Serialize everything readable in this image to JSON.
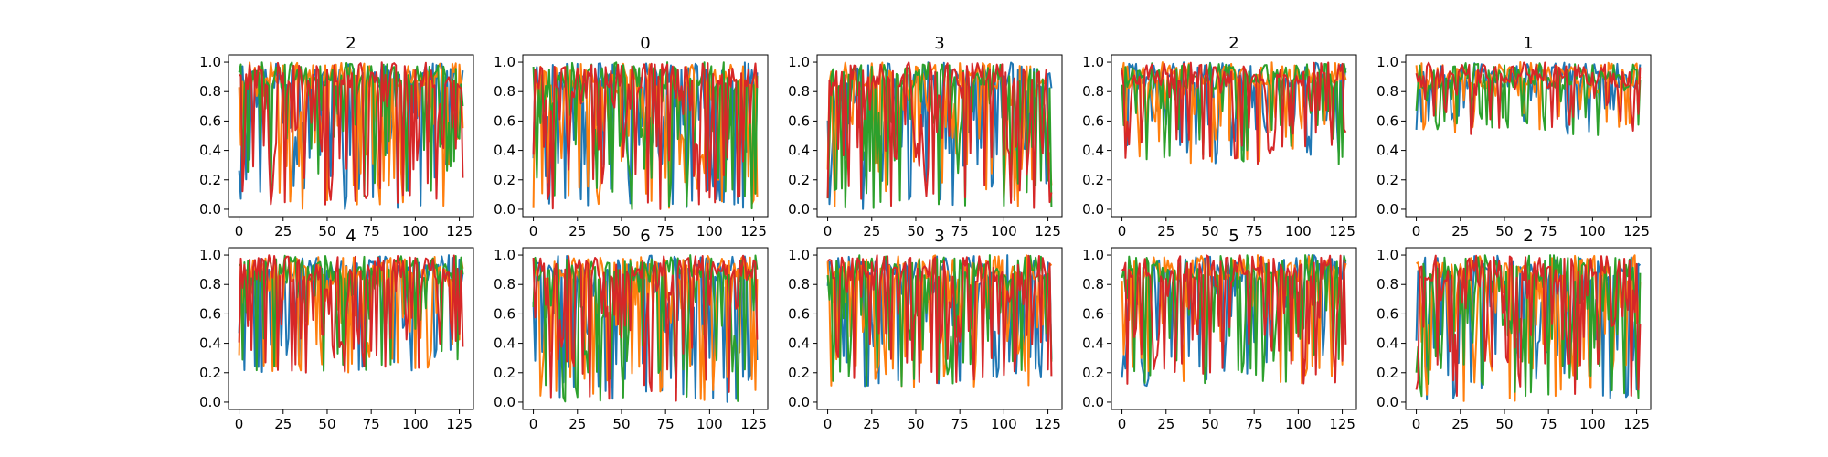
{
  "chart_data": {
    "type": "line",
    "layout": "grid 2 rows x 5 columns",
    "x_ticks": [
      0,
      25,
      50,
      75,
      100,
      125
    ],
    "y_ticks": [
      0.0,
      0.2,
      0.4,
      0.6,
      0.8,
      1.0
    ],
    "x_tick_labels": [
      "0",
      "25",
      "50",
      "75",
      "100",
      "125"
    ],
    "y_tick_labels": [
      "0.0",
      "0.2",
      "0.4",
      "0.6",
      "0.8",
      "1.0"
    ],
    "xlim": [
      -6,
      133
    ],
    "ylim": [
      -0.05,
      1.05
    ],
    "n_points": 128,
    "grid": false,
    "series_colors": [
      "#1f77b4",
      "#ff7f0e",
      "#2ca02c",
      "#d62728"
    ],
    "panels": [
      {
        "title": "2",
        "seed": 11,
        "floor": 0.0,
        "dip": 0.45
      },
      {
        "title": "0",
        "seed": 23,
        "floor": 0.0,
        "dip": 0.5
      },
      {
        "title": "3",
        "seed": 37,
        "floor": 0.0,
        "dip": 0.5
      },
      {
        "title": "2",
        "seed": 41,
        "floor": 0.3,
        "dip": 0.35
      },
      {
        "title": "1",
        "seed": 53,
        "floor": 0.5,
        "dip": 0.3
      },
      {
        "title": "4",
        "seed": 67,
        "floor": 0.2,
        "dip": 0.4
      },
      {
        "title": "6",
        "seed": 71,
        "floor": 0.0,
        "dip": 0.5
      },
      {
        "title": "3",
        "seed": 83,
        "floor": 0.1,
        "dip": 0.5
      },
      {
        "title": "5",
        "seed": 97,
        "floor": 0.1,
        "dip": 0.45
      },
      {
        "title": "2",
        "seed": 101,
        "floor": 0.0,
        "dip": 0.5
      }
    ]
  }
}
